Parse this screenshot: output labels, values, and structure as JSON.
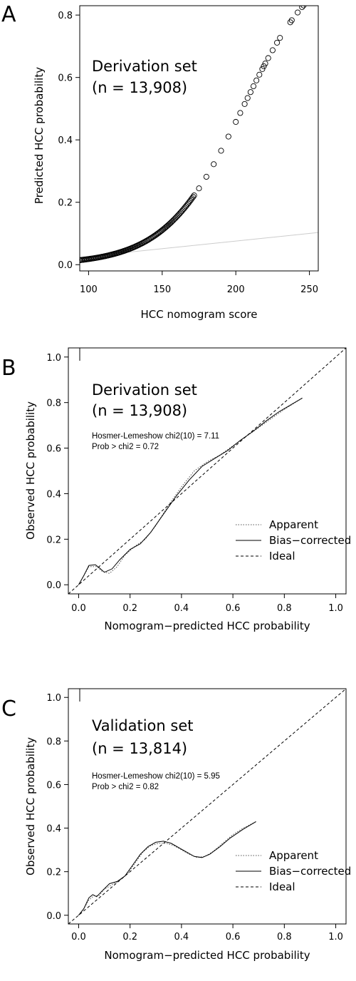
{
  "chart_data": [
    {
      "panel": "A",
      "type": "scatter",
      "xlabel": "HCC nomogram score",
      "ylabel": "Predicted HCC probability",
      "xlim": [
        94,
        256
      ],
      "ylim": [
        -0.02,
        0.83
      ],
      "xticks": [
        "100",
        "150",
        "200",
        "250"
      ],
      "xtick_values": [
        100,
        150,
        200,
        250
      ],
      "yticks": [
        "0.0",
        "0.2",
        "0.4",
        "0.6",
        "0.8"
      ],
      "ytick_values": [
        0.0,
        0.2,
        0.4,
        0.6,
        0.8
      ],
      "annotation_lines": [
        "Derivation set",
        "(n = 13,908)"
      ],
      "grid": false,
      "reference_line": {
        "x": [
          94,
          256
        ],
        "y": [
          0.024,
          0.103
        ],
        "color": "#cccccc"
      },
      "curve_model": {
        "formula": "1/(1+exp(-(a*(x-100)+b)))",
        "a": 0.0383,
        "b": -4.0
      },
      "x_points_dense_range": [
        94,
        172
      ],
      "x_points_sparse": [
        175,
        180,
        185,
        190,
        195,
        200,
        203,
        206,
        208,
        210,
        212,
        214,
        216,
        218,
        219,
        220,
        222,
        225,
        228,
        230,
        237,
        238,
        242,
        245,
        246,
        248,
        252
      ]
    },
    {
      "panel": "B",
      "type": "line",
      "xlabel": "Nomogram−predicted HCC probability",
      "ylabel": "Observed HCC probability",
      "xlim": [
        -0.04,
        1.04
      ],
      "ylim": [
        -0.04,
        1.04
      ],
      "xticks": [
        "0.0",
        "0.2",
        "0.4",
        "0.6",
        "0.8",
        "1.0"
      ],
      "xtick_values": [
        0.0,
        0.2,
        0.4,
        0.6,
        0.8,
        1.0
      ],
      "yticks": [
        "0.0",
        "0.2",
        "0.4",
        "0.6",
        "0.8",
        "1.0"
      ],
      "ytick_values": [
        0.0,
        0.2,
        0.4,
        0.6,
        0.8,
        1.0
      ],
      "annotation_lines": [
        "Derivation set",
        "(n = 13,908)"
      ],
      "stat_lines": [
        "Hosmer-Lemeshow chi2(10) = 7.11",
        "Prob > chi2 = 0.72"
      ],
      "legend": {
        "position": "bottom-right",
        "entries": [
          "Apparent",
          "Bias−corrected",
          "Ideal"
        ]
      },
      "grid": false,
      "series": [
        {
          "name": "Apparent",
          "style": "dotted",
          "x": [
            0.0,
            0.02,
            0.04,
            0.07,
            0.09,
            0.12,
            0.15,
            0.18,
            0.22,
            0.26,
            0.3,
            0.35,
            0.4,
            0.45,
            0.5,
            0.55,
            0.6,
            0.65,
            0.7,
            0.75,
            0.8,
            0.87
          ],
          "y": [
            0.0,
            0.04,
            0.08,
            0.08,
            0.06,
            0.05,
            0.08,
            0.13,
            0.17,
            0.2,
            0.26,
            0.35,
            0.43,
            0.5,
            0.54,
            0.57,
            0.61,
            0.65,
            0.69,
            0.73,
            0.77,
            0.82
          ]
        },
        {
          "name": "Bias−corrected",
          "style": "solid",
          "x": [
            0.0,
            0.02,
            0.04,
            0.065,
            0.08,
            0.1,
            0.13,
            0.16,
            0.2,
            0.24,
            0.28,
            0.33,
            0.38,
            0.43,
            0.48,
            0.53,
            0.58,
            0.63,
            0.68,
            0.73,
            0.78,
            0.87
          ],
          "y": [
            0.0,
            0.04,
            0.085,
            0.088,
            0.075,
            0.055,
            0.07,
            0.11,
            0.155,
            0.18,
            0.23,
            0.31,
            0.39,
            0.46,
            0.52,
            0.555,
            0.59,
            0.635,
            0.675,
            0.72,
            0.76,
            0.82
          ]
        },
        {
          "name": "Ideal",
          "style": "dashed",
          "x": [
            -0.04,
            1.04
          ],
          "y": [
            -0.04,
            1.04
          ]
        }
      ]
    },
    {
      "panel": "C",
      "type": "line",
      "xlabel": "Nomogram−predicted HCC probability",
      "ylabel": "Observed HCC probability",
      "xlim": [
        -0.04,
        1.04
      ],
      "ylim": [
        -0.04,
        1.04
      ],
      "xticks": [
        "0.0",
        "0.2",
        "0.4",
        "0.6",
        "0.8",
        "1.0"
      ],
      "xtick_values": [
        0.0,
        0.2,
        0.4,
        0.6,
        0.8,
        1.0
      ],
      "yticks": [
        "0.0",
        "0.2",
        "0.4",
        "0.6",
        "0.8",
        "1.0"
      ],
      "ytick_values": [
        0.0,
        0.2,
        0.4,
        0.6,
        0.8,
        1.0
      ],
      "annotation_lines": [
        "Validation set",
        "(n = 13,814)"
      ],
      "stat_lines": [
        "Hosmer-Lemeshow chi2(10) = 5.95",
        "Prob > chi2 = 0.82"
      ],
      "legend": {
        "position": "bottom-right",
        "entries": [
          "Apparent",
          "Bias−corrected",
          "Ideal"
        ]
      },
      "grid": false,
      "series": [
        {
          "name": "Apparent",
          "style": "dotted",
          "x": [
            0.0,
            0.02,
            0.04,
            0.06,
            0.08,
            0.1,
            0.13,
            0.16,
            0.19,
            0.22,
            0.25,
            0.28,
            0.31,
            0.34,
            0.37,
            0.4,
            0.43,
            0.46,
            0.49,
            0.52,
            0.56,
            0.6,
            0.64,
            0.69
          ],
          "y": [
            0.0,
            0.03,
            0.07,
            0.09,
            0.09,
            0.12,
            0.14,
            0.16,
            0.19,
            0.24,
            0.29,
            0.32,
            0.33,
            0.33,
            0.32,
            0.3,
            0.28,
            0.265,
            0.27,
            0.29,
            0.33,
            0.37,
            0.4,
            0.43
          ]
        },
        {
          "name": "Bias−corrected",
          "style": "solid",
          "x": [
            0.0,
            0.02,
            0.04,
            0.055,
            0.07,
            0.09,
            0.12,
            0.15,
            0.18,
            0.21,
            0.24,
            0.27,
            0.3,
            0.33,
            0.36,
            0.39,
            0.42,
            0.45,
            0.48,
            0.51,
            0.55,
            0.59,
            0.64,
            0.69
          ],
          "y": [
            0.0,
            0.03,
            0.08,
            0.095,
            0.085,
            0.11,
            0.145,
            0.155,
            0.18,
            0.23,
            0.28,
            0.315,
            0.335,
            0.34,
            0.33,
            0.31,
            0.29,
            0.27,
            0.265,
            0.28,
            0.315,
            0.355,
            0.395,
            0.43
          ]
        },
        {
          "name": "Ideal",
          "style": "dashed",
          "x": [
            -0.04,
            1.04
          ],
          "y": [
            -0.04,
            1.04
          ]
        }
      ]
    }
  ]
}
